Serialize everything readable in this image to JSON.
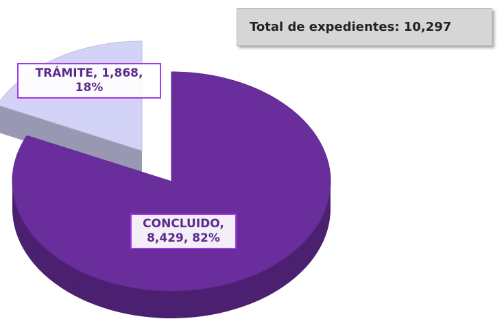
{
  "chart_data": {
    "type": "pie3d",
    "annotation": "Total de expedientes: 10,297",
    "categories": [
      "CONCLUIDO",
      "TRÁMITE"
    ],
    "values": [
      8429,
      1868
    ],
    "value_labels": [
      "CONCLUIDO, 8,429, 82%",
      "TRÁMITE, 1,868, 18%"
    ],
    "colors": [
      "#6a2d9c",
      "#d3d3f7"
    ]
  }
}
